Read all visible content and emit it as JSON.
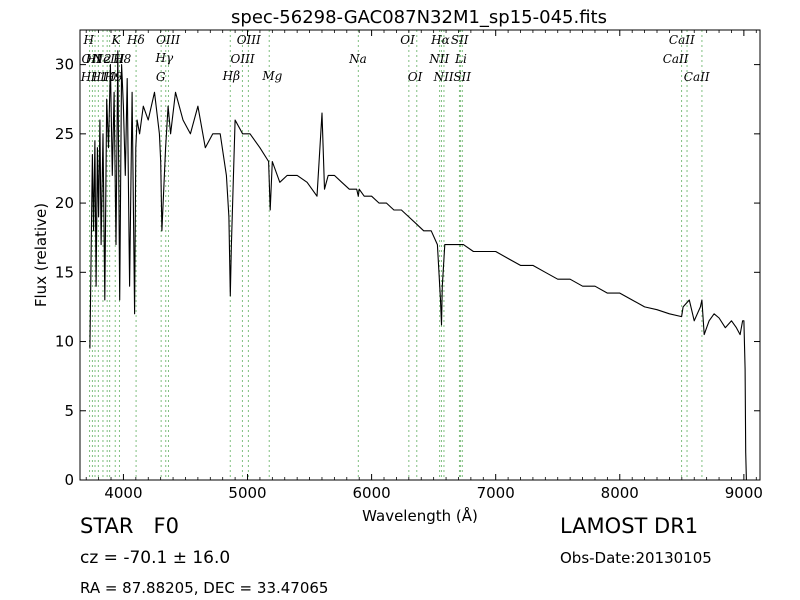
{
  "chart_data": {
    "type": "line",
    "title": "spec-56298-GAC087N32M1_sp15-045.fits",
    "xlabel": "Wavelength (Å)",
    "ylabel": "Flux (relative)",
    "xlim": [
      3650,
      9130
    ],
    "ylim": [
      0,
      32.5
    ],
    "xticks": [
      4000,
      5000,
      6000,
      7000,
      8000,
      9000
    ],
    "yticks": [
      0,
      5,
      10,
      15,
      20,
      25,
      30
    ],
    "grid": false,
    "legend": "none",
    "line_color": "#000000",
    "marker_color": "#7fbf7f",
    "series": [
      {
        "x": [
          3730,
          3750,
          3760,
          3770,
          3780,
          3790,
          3800,
          3810,
          3820,
          3835,
          3850,
          3865,
          3880,
          3895,
          3910,
          3925,
          3940,
          3955,
          3970,
          3985,
          4000,
          4015,
          4030,
          4050,
          4070,
          4090,
          4100,
          4110,
          4130,
          4160,
          4200,
          4250,
          4290,
          4300,
          4310,
          4340,
          4360,
          4380,
          4420,
          4480,
          4540,
          4600,
          4660,
          4720,
          4780,
          4830,
          4850,
          4861,
          4870,
          4900,
          4960,
          5020,
          5100,
          5170,
          5183,
          5200,
          5260,
          5320,
          5400,
          5480,
          5560,
          5600,
          5620,
          5650,
          5700,
          5760,
          5820,
          5880,
          5893,
          5900,
          5940,
          6000,
          6060,
          6120,
          6180,
          6240,
          6300,
          6360,
          6420,
          6480,
          6530,
          6555,
          6563,
          6570,
          6590,
          6620,
          6680,
          6740,
          6820,
          6900,
          7000,
          7100,
          7200,
          7300,
          7400,
          7500,
          7600,
          7700,
          7800,
          7900,
          8000,
          8100,
          8200,
          8300,
          8400,
          8498,
          8510,
          8560,
          8600,
          8650,
          8662,
          8680,
          8720,
          8760,
          8800,
          8850,
          8900,
          8940,
          8970,
          8990,
          9000,
          9010,
          9015,
          9020
        ],
        "y": [
          9.5,
          23.5,
          18,
          24.5,
          14,
          24,
          19,
          26,
          17,
          25,
          13,
          27.5,
          24,
          30,
          22,
          28,
          17,
          31,
          13,
          30,
          27,
          22,
          29,
          14,
          28,
          12,
          24,
          26,
          25,
          27,
          26,
          28,
          25,
          23,
          18,
          24,
          27,
          25,
          28,
          26,
          25,
          27,
          24,
          25,
          25,
          22,
          19,
          13.3,
          17,
          26,
          25,
          25,
          24,
          23,
          19.5,
          23,
          21.5,
          22,
          22,
          21.5,
          20.5,
          26.5,
          21,
          22,
          22,
          21.5,
          21,
          21,
          20.5,
          21,
          20.5,
          20.5,
          20,
          20,
          19.5,
          19.5,
          19,
          18.5,
          18,
          18,
          17,
          13,
          11.2,
          14,
          17,
          17,
          17,
          17,
          16.5,
          16.5,
          16.5,
          16,
          15.5,
          15.5,
          15,
          14.5,
          14.5,
          14,
          14,
          13.5,
          13.5,
          13,
          12.5,
          12.3,
          12,
          11.8,
          12.5,
          13,
          11.5,
          12.5,
          13,
          10.5,
          11.5,
          12,
          11.7,
          11,
          11.5,
          11,
          10.5,
          11.5,
          11.5,
          8,
          2,
          0
        ]
      }
    ],
    "lines": [
      {
        "x": 3727,
        "label": "OII"
      },
      {
        "x": 3750,
        "label": "H12"
      },
      {
        "x": 3771,
        "label": "H11"
      },
      {
        "x": 3798,
        "label": "H10"
      },
      {
        "x": 3835,
        "label": "H9"
      },
      {
        "x": 3869,
        "label": "NeIII"
      },
      {
        "x": 3889,
        "label": "H8"
      },
      {
        "x": 3934,
        "label": "K"
      },
      {
        "x": 3968,
        "label": "H"
      },
      {
        "x": 4102,
        "label": "Hδ"
      },
      {
        "x": 4304,
        "label": "G"
      },
      {
        "x": 4341,
        "label": "Hγ"
      },
      {
        "x": 4363,
        "label": "OIII"
      },
      {
        "x": 4861,
        "label": "Hβ"
      },
      {
        "x": 4959,
        "label": "OIII"
      },
      {
        "x": 5007,
        "label": "OIII"
      },
      {
        "x": 5175,
        "label": "Mg"
      },
      {
        "x": 5893,
        "label": "Na"
      },
      {
        "x": 6300,
        "label": "OI"
      },
      {
        "x": 6364,
        "label": "OI"
      },
      {
        "x": 6548,
        "label": "NII"
      },
      {
        "x": 6563,
        "label": "Hα"
      },
      {
        "x": 6583,
        "label": "NII"
      },
      {
        "x": 6708,
        "label": "Li"
      },
      {
        "x": 6716,
        "label": "SII"
      },
      {
        "x": 6731,
        "label": "SII"
      },
      {
        "x": 8498,
        "label": "CaII"
      },
      {
        "x": 8542,
        "label": "CaII"
      },
      {
        "x": 8662,
        "label": "CaII"
      }
    ],
    "labels": [
      {
        "text": "H",
        "x": 3720,
        "y": 31.5
      },
      {
        "text": "K",
        "x": 3940,
        "y": 31.5
      },
      {
        "text": "Hδ",
        "x": 4100,
        "y": 31.5
      },
      {
        "text": "OIII",
        "x": 4360,
        "y": 31.5
      },
      {
        "text": "Hγ",
        "x": 4330,
        "y": 30.2
      },
      {
        "text": "G",
        "x": 4300,
        "y": 28.8
      },
      {
        "text": "OII",
        "x": 3740,
        "y": 30.1
      },
      {
        "text": "H12",
        "x": 3800,
        "y": 30.1
      },
      {
        "text": "NeIII",
        "x": 3880,
        "y": 30.1
      },
      {
        "text": "H8",
        "x": 3990,
        "y": 30.1
      },
      {
        "text": "H11",
        "x": 3760,
        "y": 28.8
      },
      {
        "text": "H10",
        "x": 3840,
        "y": 28.8
      },
      {
        "text": "H9",
        "x": 3920,
        "y": 28.8
      },
      {
        "text": "OIII",
        "x": 5010,
        "y": 31.5
      },
      {
        "text": "OIII",
        "x": 4960,
        "y": 30.1
      },
      {
        "text": "Hβ",
        "x": 4870,
        "y": 28.9
      },
      {
        "text": "Mg",
        "x": 5200,
        "y": 28.9
      },
      {
        "text": "Na",
        "x": 5890,
        "y": 30.1
      },
      {
        "text": "OI",
        "x": 6290,
        "y": 31.5
      },
      {
        "text": "OI",
        "x": 6350,
        "y": 28.8
      },
      {
        "text": "Hα",
        "x": 6555,
        "y": 31.5
      },
      {
        "text": "SII",
        "x": 6710,
        "y": 31.5
      },
      {
        "text": "NII",
        "x": 6545,
        "y": 30.1
      },
      {
        "text": "Li",
        "x": 6720,
        "y": 30.1
      },
      {
        "text": "NII",
        "x": 6580,
        "y": 28.8
      },
      {
        "text": "SII",
        "x": 6730,
        "y": 28.8
      },
      {
        "text": "CaII",
        "x": 8500,
        "y": 31.5
      },
      {
        "text": "CaII",
        "x": 8450,
        "y": 30.1
      },
      {
        "text": "CaII",
        "x": 8620,
        "y": 28.8
      }
    ]
  },
  "info": {
    "object_type": "STAR   F0",
    "cz": "cz = -70.1 ± 16.0",
    "radec": "RA = 87.88205, DEC = 33.47065",
    "survey": "LAMOST DR1",
    "obs_date": "Obs-Date:20130105"
  }
}
